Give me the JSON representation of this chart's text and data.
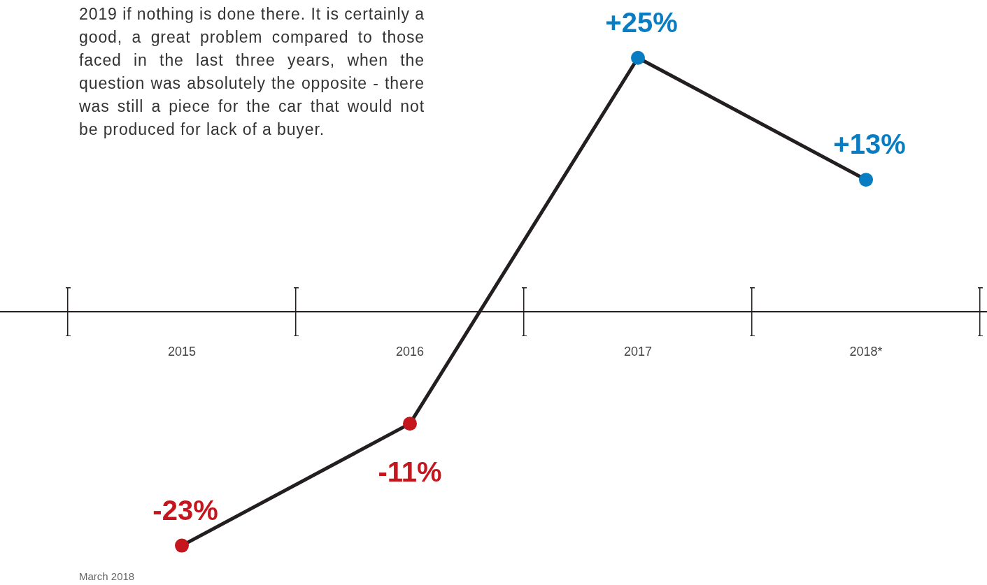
{
  "chart_data": {
    "type": "line",
    "categories": [
      "2015",
      "2016",
      "2017",
      "2018*"
    ],
    "series": [
      {
        "color": "#231f20",
        "colors": [
          "#c4161c",
          "#c4161c",
          "#0a7dc2",
          "#0a7dc2"
        ],
        "values": [
          -23,
          -11,
          25,
          13
        ],
        "value_labels": [
          "-23%",
          "-11%",
          "+25%",
          "+13%"
        ]
      }
    ],
    "marker": "circle",
    "ref_lines": [
      {
        "axis": "y",
        "value": 0,
        "color": "#231f20"
      }
    ],
    "annotations": [
      "2019 if nothing is done there. It is certainly a good, a great problem compared to those faced in the last three years, when the question was absolutely the opposite - there was still a piece for the car that would not be produced for lack of a buyer.",
      "March 2018"
    ]
  }
}
